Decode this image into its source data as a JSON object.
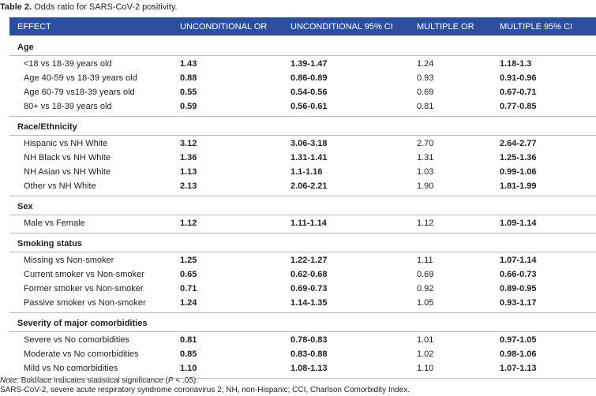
{
  "caption": {
    "label": "Table 2.",
    "text": "Odds ratio for SARS-CoV-2 positivity."
  },
  "table": {
    "columns": [
      "EFFECT",
      "UNCONDITIONAL OR",
      "UNCONDITIONAL 95% CI",
      "MULTIPLE OR",
      "MULTIPLE 95% CI"
    ],
    "sections": [
      {
        "title": "Age",
        "rows": [
          [
            "<18 vs 18-39 years old",
            "1.43",
            "1.39-1.47",
            "1.24",
            "1.18-1.3"
          ],
          [
            "Age 40-59 vs 18-39 years old",
            "0.88",
            "0.86-0.89",
            "0.93",
            "0.91-0.96"
          ],
          [
            "Age 60-79 vs18-39 years old",
            "0.55",
            "0.54-0.56",
            "0.69",
            "0.67-0.71"
          ],
          [
            "80+ vs 18-39 years old",
            "0.59",
            "0.56-0.61",
            "0.81",
            "0.77-0.85"
          ]
        ]
      },
      {
        "title": "Race/Ethnicity",
        "rows": [
          [
            "Hispanic vs NH White",
            "3.12",
            "3.06-3.18",
            "2.70",
            "2.64-2.77"
          ],
          [
            "NH Black vs NH White",
            "1.36",
            "1.31-1.41",
            "1.31",
            "1.25-1.36"
          ],
          [
            "NH Asian vs NH White",
            "1.13",
            "1.1-1.16",
            "1.03",
            "0.99-1.06"
          ],
          [
            "Other vs NH White",
            "2.13",
            "2.06-2.21",
            "1.90",
            "1.81-1.99"
          ]
        ]
      },
      {
        "title": "Sex",
        "rows": [
          [
            "Male vs Female",
            "1.12",
            "1.11-1.14",
            "1.12",
            "1.09-1.14"
          ]
        ]
      },
      {
        "title": "Smoking status",
        "rows": [
          [
            "Missing vs Non-smoker",
            "1.25",
            "1.22-1.27",
            "1.11",
            "1.07-1.14"
          ],
          [
            "Current smoker vs Non-smoker",
            "0.65",
            "0.62-0.68",
            "0.69",
            "0.66-0.73"
          ],
          [
            "Former smoker vs Non-smoker",
            "0.71",
            "0.69-0.73",
            "0.92",
            "0.89-0.95"
          ],
          [
            "Passive smoker vs Non-smoker",
            "1.24",
            "1.14-1.35",
            "1.05",
            "0.93-1.17"
          ]
        ]
      },
      {
        "title": "Severity of major comorbidities",
        "rows": [
          [
            "Severe vs No comorbidities",
            "0.81",
            "0.78-0.83",
            "1.01",
            "0.97-1.05"
          ],
          [
            "Moderate vs No comorbidities",
            "0.85",
            "0.83-0.88",
            "1.02",
            "0.98-1.06"
          ],
          [
            "Mild vs No comorbidities",
            "1.10",
            "1.08-1.13",
            "1.10",
            "1.07-1.13"
          ]
        ]
      }
    ]
  },
  "notes": {
    "significance": [
      "Note",
      ": Boldface indicates statistical significance (",
      "P",
      " < .05)."
    ],
    "abbreviations": "SARS-CoV-2, severe acute respiratory syndrome coronavirus 2; NH, non-Hispanic; CCI, Charlson Comorbidity Index."
  }
}
